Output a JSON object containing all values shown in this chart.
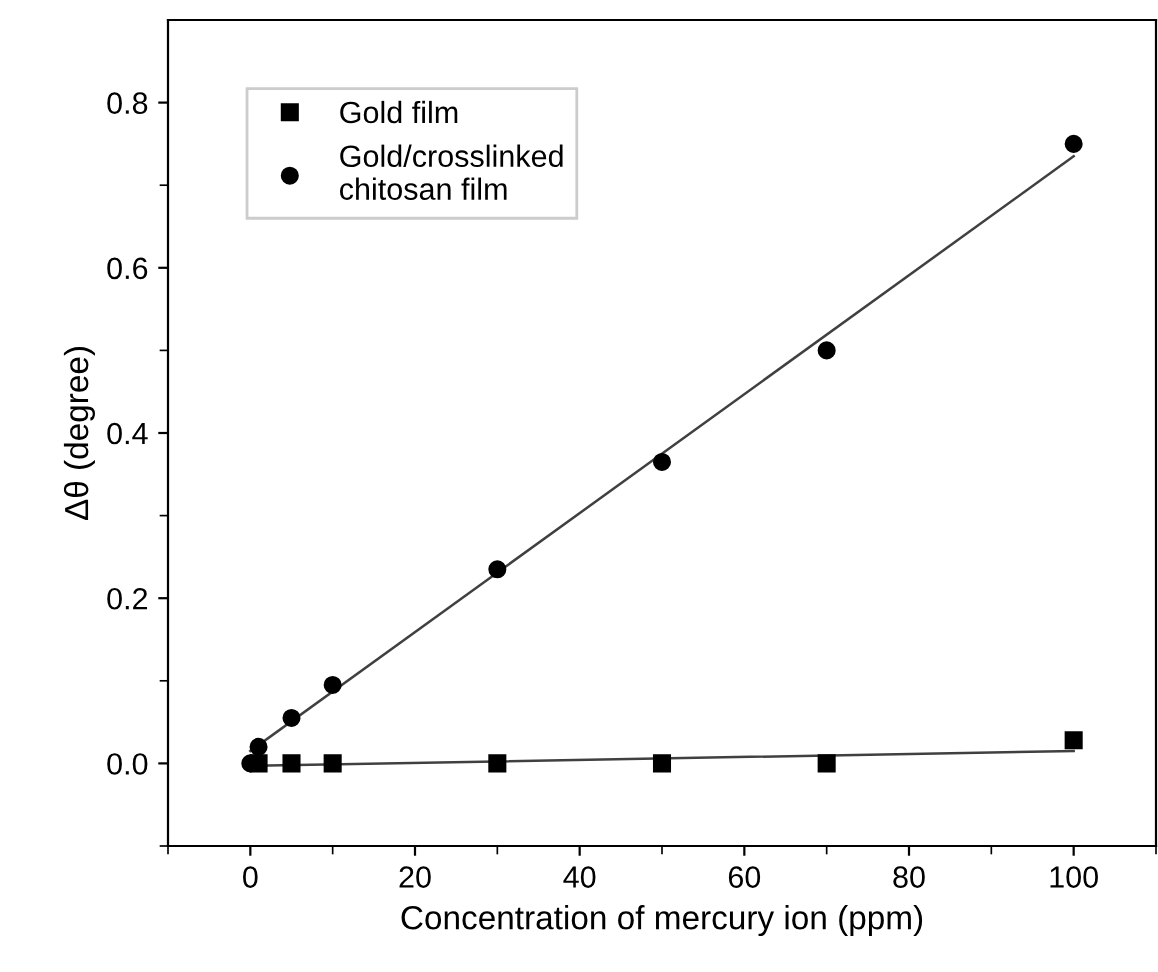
{
  "chart_data": {
    "type": "scatter",
    "xlabel": "Concentration of mercury ion (ppm)",
    "ylabel": "Δθ (degree)",
    "xlim": [
      -10,
      110
    ],
    "ylim": [
      -0.1,
      0.9
    ],
    "xticks": [
      0,
      20,
      40,
      60,
      80,
      100
    ],
    "yticks": [
      {
        "value": 0,
        "label": "0.0"
      },
      0.2,
      0.4,
      0.6,
      0.8
    ],
    "grid": false,
    "legend": "top left",
    "series": [
      {
        "name": "Gold film",
        "color": "#000000",
        "marker": "square",
        "x": [
          1,
          5,
          10,
          30,
          50,
          70,
          100
        ],
        "values": [
          0,
          0,
          0,
          0,
          0,
          0,
          0.028
        ]
      },
      {
        "name": "Gold/crosslinked\nchitosan film",
        "color": "#000000",
        "marker": "circle",
        "x": [
          0,
          0.5,
          1,
          5,
          10,
          30,
          50,
          70,
          100
        ],
        "values": [
          0,
          null,
          0.02,
          0.055,
          0.095,
          0.235,
          0.365,
          0.5,
          0.75
        ]
      },
      {
        "type": "line",
        "color": "#404040",
        "marker": "none",
        "x": [
          0,
          100
        ],
        "values": [
          -0.003,
          0.015
        ]
      },
      {
        "type": "line",
        "color": "#404040",
        "marker": "none",
        "x": [
          0,
          100
        ],
        "values": [
          0.015,
          0.735
        ]
      }
    ]
  }
}
